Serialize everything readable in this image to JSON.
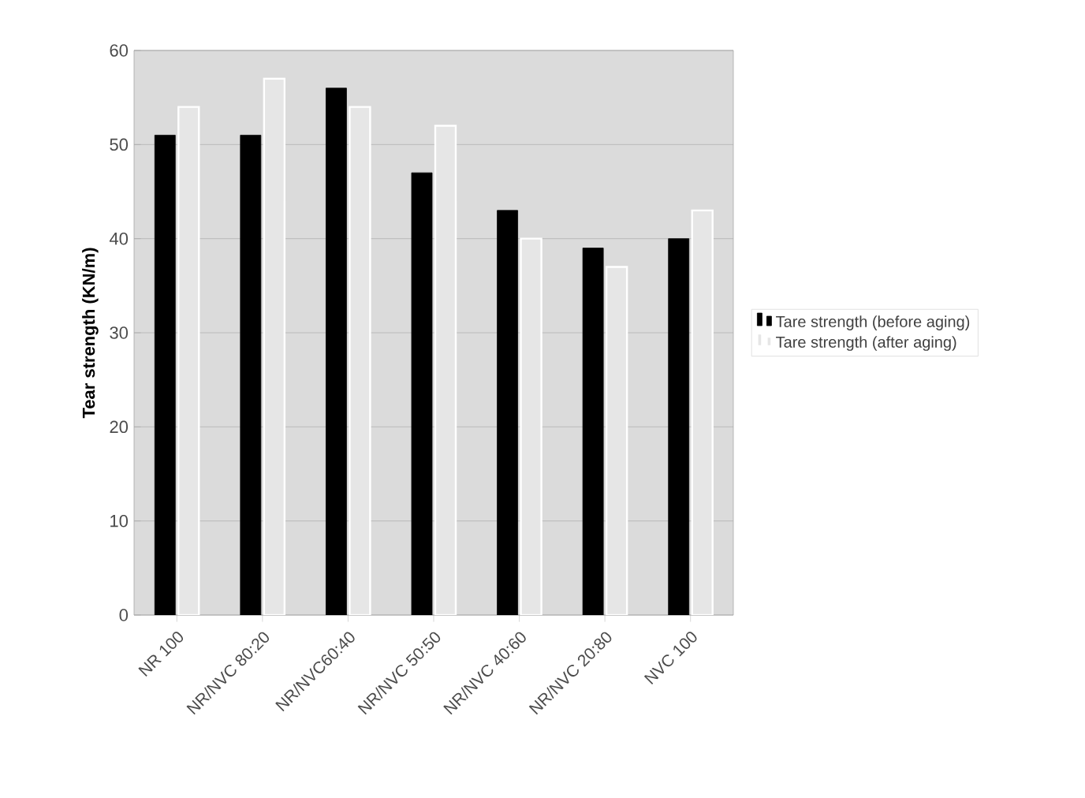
{
  "chart_data": {
    "type": "bar",
    "ylabel": "Tear strength (KN/m)",
    "categories": [
      "NR 100",
      "NR/NVC 80:20",
      "NR/NVC60:40",
      "NR/NVC 50:50",
      "NR/NVC 40:60",
      "NR/NVC 20:80",
      "NVC 100"
    ],
    "series": [
      {
        "name": "Tare strength (before aging)",
        "color": "#000000",
        "values": [
          51,
          51,
          56,
          47,
          43,
          39,
          40
        ]
      },
      {
        "name": "Tare strength (after aging)",
        "color": "#e6e6e6",
        "values": [
          54,
          57,
          54,
          52,
          40,
          37,
          43
        ]
      }
    ],
    "ylim": [
      0,
      60
    ],
    "yticks": [
      0,
      10,
      20,
      30,
      40,
      50,
      60
    ],
    "grid": "y",
    "legend": "right"
  }
}
